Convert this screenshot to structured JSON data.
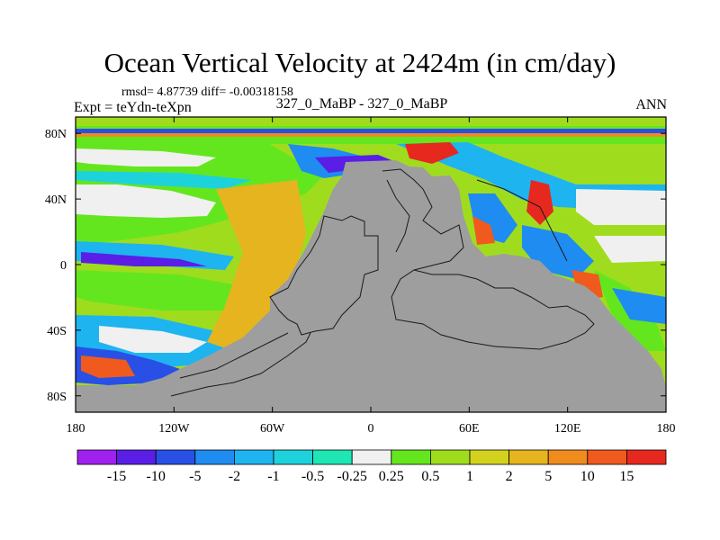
{
  "chart_data": {
    "type": "heatmap",
    "title": "Ocean Vertical Velocity at 2424m (in cm/day)",
    "stats_text": "rmsd= 4.87739 diff= -0.00318158",
    "experiment_text": "Expt = teYdn-teXpn",
    "case_text": "327_0_MaBP - 327_0_MaBP",
    "season": "ANN",
    "lon_range": [
      -180,
      180
    ],
    "lat_range": [
      -90,
      90
    ],
    "x_ticks": [
      {
        "value": -180,
        "label": "180"
      },
      {
        "value": -120,
        "label": "120W"
      },
      {
        "value": -60,
        "label": "60W"
      },
      {
        "value": 0,
        "label": "0"
      },
      {
        "value": 60,
        "label": "60E"
      },
      {
        "value": 120,
        "label": "120E"
      },
      {
        "value": 180,
        "label": "180"
      }
    ],
    "y_ticks": [
      {
        "value": 80,
        "label": "80N"
      },
      {
        "value": 40,
        "label": "40N"
      },
      {
        "value": 0,
        "label": "0"
      },
      {
        "value": -40,
        "label": "40S"
      },
      {
        "value": -80,
        "label": "80S"
      }
    ],
    "colorbar": {
      "levels": [
        "-15",
        "-10",
        "-5",
        "-2",
        "-1",
        "-0.5",
        "-0.25",
        "0.25",
        "0.5",
        "1",
        "2",
        "5",
        "10",
        "15"
      ],
      "colors": [
        "#a020f0",
        "#5a1ee6",
        "#2850e6",
        "#1e8cf0",
        "#1eb4f0",
        "#1ed2dc",
        "#1ee6b4",
        "#f0f0f0",
        "#64e61e",
        "#a0dc1e",
        "#d2d21e",
        "#e6b41e",
        "#f08c1e",
        "#f05a1e",
        "#e6281e"
      ]
    },
    "land_color": "#9e9e9e"
  }
}
